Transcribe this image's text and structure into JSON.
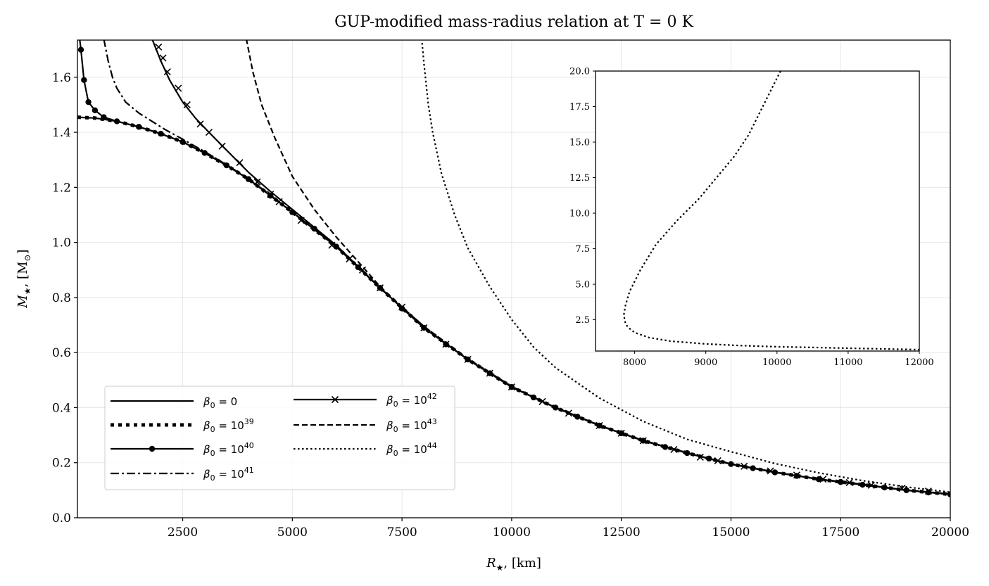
{
  "chart_data": {
    "type": "line",
    "title": "GUP-modified mass-radius relation at T = 0 K",
    "xlabel_main": "R",
    "xlabel_sub": "★",
    "xlabel_unit": ", [km]",
    "ylabel_main": "M",
    "ylabel_sub": "★",
    "ylabel_unit": ", [M",
    "ylabel_sun": "⊙",
    "ylabel_close": "]",
    "xlim": [
      100,
      20000
    ],
    "ylim": [
      0.0,
      1.735
    ],
    "xticks": [
      2500,
      5000,
      7500,
      10000,
      12500,
      15000,
      17500,
      20000
    ],
    "yticks": [
      0.0,
      0.2,
      0.4,
      0.6,
      0.8,
      1.0,
      1.2,
      1.4,
      1.6
    ],
    "xtick_labels": [
      "2500",
      "5000",
      "7500",
      "10000",
      "12500",
      "15000",
      "17500",
      "20000"
    ],
    "ytick_labels": [
      "0.0",
      "0.2",
      "0.4",
      "0.6",
      "0.8",
      "1.0",
      "1.2",
      "1.4",
      "1.6"
    ],
    "grid": true,
    "legend_position": "lower-left",
    "series": [
      {
        "name": "beta0-0",
        "label_exp": "",
        "label_value": "0",
        "style": "solid",
        "marker": "none",
        "x": [
          100,
          500,
          1000,
          1500,
          2000,
          2500,
          3000,
          3500,
          4000,
          4500,
          5000,
          6000,
          7000,
          8000,
          9000,
          10000,
          11000,
          12000,
          13000,
          14000,
          15000,
          16000,
          17000,
          18000,
          19000,
          20000
        ],
        "y": [
          1.455,
          1.452,
          1.44,
          1.42,
          1.395,
          1.365,
          1.325,
          1.28,
          1.23,
          1.17,
          1.11,
          0.985,
          0.835,
          0.69,
          0.575,
          0.475,
          0.4,
          0.335,
          0.28,
          0.235,
          0.195,
          0.165,
          0.14,
          0.12,
          0.1,
          0.085
        ]
      },
      {
        "name": "beta0-1e39",
        "label_exp": "39",
        "label_value": "10",
        "style": "dotted-thick",
        "marker": "none",
        "x": [
          100,
          500,
          1000,
          1500,
          2000,
          2500,
          3000,
          3500,
          4000,
          4500,
          5000,
          6000,
          7000,
          8000,
          9000,
          10000,
          11000,
          12000,
          13000,
          14000,
          15000,
          16000,
          17000,
          18000,
          19000,
          20000
        ],
        "y": [
          1.455,
          1.452,
          1.44,
          1.42,
          1.395,
          1.365,
          1.325,
          1.28,
          1.23,
          1.17,
          1.11,
          0.985,
          0.835,
          0.69,
          0.575,
          0.475,
          0.4,
          0.335,
          0.28,
          0.235,
          0.195,
          0.165,
          0.14,
          0.12,
          0.1,
          0.085
        ]
      },
      {
        "name": "beta0-1e40",
        "label_exp": "40",
        "label_value": "10",
        "style": "solid",
        "marker": "circle",
        "x": [
          150,
          180,
          250,
          350,
          500,
          700,
          1000,
          1500,
          2000,
          2500,
          3000,
          3500,
          4000,
          4500,
          5000,
          6000,
          7000,
          8000,
          9000,
          10000,
          11000,
          12000,
          13000,
          14000,
          15000,
          16000,
          17000,
          18000,
          19000,
          20000
        ],
        "y": [
          1.74,
          1.7,
          1.59,
          1.51,
          1.48,
          1.455,
          1.44,
          1.42,
          1.395,
          1.365,
          1.325,
          1.28,
          1.23,
          1.17,
          1.11,
          0.985,
          0.835,
          0.69,
          0.575,
          0.475,
          0.4,
          0.335,
          0.28,
          0.235,
          0.195,
          0.165,
          0.14,
          0.12,
          0.1,
          0.085
        ],
        "marker_x": [
          180,
          250,
          350,
          500,
          700,
          1000,
          1500,
          2000,
          2500,
          3000,
          3500,
          4000,
          4500,
          5000,
          5500,
          6000,
          6500,
          7000,
          7500,
          8000,
          8500,
          9000,
          9500,
          10000,
          10500,
          11000,
          11500,
          12000,
          12500,
          13000,
          13500,
          14000,
          14500,
          15000,
          15500,
          16000,
          16500,
          17000,
          17500,
          18000,
          18500,
          19000,
          19500,
          20000
        ],
        "marker_y": [
          1.7,
          1.59,
          1.51,
          1.48,
          1.455,
          1.44,
          1.42,
          1.395,
          1.365,
          1.325,
          1.28,
          1.23,
          1.17,
          1.11,
          1.05,
          0.985,
          0.91,
          0.835,
          0.76,
          0.69,
          0.63,
          0.575,
          0.525,
          0.475,
          0.437,
          0.4,
          0.367,
          0.335,
          0.307,
          0.28,
          0.257,
          0.235,
          0.215,
          0.195,
          0.18,
          0.165,
          0.152,
          0.14,
          0.13,
          0.12,
          0.11,
          0.1,
          0.092,
          0.085
        ]
      },
      {
        "name": "beta0-1e41",
        "label_exp": "41",
        "label_value": "10",
        "style": "dashdot",
        "marker": "none",
        "x": [
          700,
          800,
          900,
          1000,
          1200,
          1500,
          1800,
          2100,
          2500,
          3000,
          3500,
          4000,
          4500,
          5000,
          6000,
          7000,
          8000,
          9000,
          10000,
          11000,
          12000,
          13000,
          14000,
          15000,
          16000,
          17000,
          18000,
          19000,
          20000
        ],
        "y": [
          1.74,
          1.66,
          1.6,
          1.56,
          1.51,
          1.47,
          1.44,
          1.41,
          1.375,
          1.33,
          1.282,
          1.232,
          1.172,
          1.11,
          0.985,
          0.835,
          0.69,
          0.575,
          0.475,
          0.4,
          0.335,
          0.28,
          0.235,
          0.195,
          0.165,
          0.14,
          0.12,
          0.1,
          0.085
        ]
      },
      {
        "name": "beta0-1e42",
        "label_exp": "42",
        "label_value": "10",
        "style": "solid",
        "marker": "x",
        "x": [
          1800,
          2000,
          2200,
          2500,
          2800,
          3100,
          3500,
          4000,
          4500,
          5000,
          6000,
          7000,
          8000,
          9000,
          10000,
          11000,
          12000,
          13000,
          14000,
          15000,
          16000,
          17000,
          18000,
          19000,
          20000
        ],
        "y": [
          1.74,
          1.66,
          1.59,
          1.51,
          1.45,
          1.4,
          1.335,
          1.255,
          1.185,
          1.12,
          0.99,
          0.835,
          0.69,
          0.575,
          0.475,
          0.4,
          0.335,
          0.28,
          0.235,
          0.195,
          0.165,
          0.14,
          0.12,
          0.1,
          0.085
        ],
        "marker_x": [
          1950,
          2050,
          2150,
          2400,
          2600,
          2900,
          3100,
          3400,
          3800,
          4200,
          4500,
          4700,
          5200,
          5900,
          6300,
          6600,
          7000,
          7500,
          8000,
          8500,
          9000,
          9500,
          10000,
          10700,
          11300,
          12000,
          12500,
          13000,
          13700,
          14300,
          14700,
          15300,
          15900,
          16500,
          17100,
          17700,
          18200,
          18900,
          19500
        ],
        "marker_y": [
          1.71,
          1.67,
          1.62,
          1.56,
          1.5,
          1.43,
          1.4,
          1.35,
          1.29,
          1.22,
          1.175,
          1.148,
          1.08,
          0.99,
          0.94,
          0.9,
          0.835,
          0.765,
          0.69,
          0.63,
          0.575,
          0.525,
          0.475,
          0.422,
          0.38,
          0.335,
          0.307,
          0.28,
          0.248,
          0.22,
          0.207,
          0.187,
          0.17,
          0.155,
          0.14,
          0.128,
          0.118,
          0.107,
          0.097
        ]
      },
      {
        "name": "beta0-1e43",
        "label_exp": "43",
        "label_value": "10",
        "style": "dashed",
        "marker": "none",
        "x": [
          3950,
          4100,
          4300,
          4600,
          5000,
          5500,
          6000,
          6500,
          7000,
          7500,
          8000,
          9000,
          10000,
          11000,
          12000,
          13000,
          14000,
          15000,
          16000,
          17000,
          18000,
          19000,
          20000
        ],
        "y": [
          1.74,
          1.62,
          1.5,
          1.38,
          1.24,
          1.12,
          1.02,
          0.93,
          0.84,
          0.765,
          0.695,
          0.578,
          0.477,
          0.401,
          0.336,
          0.281,
          0.236,
          0.196,
          0.166,
          0.141,
          0.121,
          0.101,
          0.086
        ]
      },
      {
        "name": "beta0-1e44",
        "label_exp": "44",
        "label_value": "10",
        "style": "dotted",
        "marker": "none",
        "x": [
          7950,
          8000,
          8100,
          8200,
          8400,
          8700,
          9000,
          9500,
          10000,
          10500,
          11000,
          12000,
          13000,
          14000,
          15000,
          16000,
          17000,
          18000,
          19000,
          20000
        ],
        "y": [
          1.74,
          1.65,
          1.5,
          1.4,
          1.25,
          1.1,
          0.98,
          0.84,
          0.72,
          0.62,
          0.545,
          0.435,
          0.35,
          0.285,
          0.24,
          0.197,
          0.163,
          0.135,
          0.112,
          0.093
        ]
      }
    ],
    "inset": {
      "xlim": [
        7450,
        12000
      ],
      "ylim": [
        0.3,
        20.0
      ],
      "xticks": [
        8000,
        9000,
        10000,
        11000,
        12000
      ],
      "yticks": [
        2.5,
        5.0,
        7.5,
        10.0,
        12.5,
        15.0,
        17.5,
        20.0
      ],
      "xtick_labels": [
        "8000",
        "9000",
        "10000",
        "11000",
        "12000"
      ],
      "ytick_labels": [
        "2.5",
        "5.0",
        "7.5",
        "10.0",
        "12.5",
        "15.0",
        "17.5",
        "20.0"
      ],
      "series": [
        {
          "name": "inset-beta0-1e44",
          "style": "dotted",
          "x": [
            10050,
            9950,
            9800,
            9600,
            9400,
            9150,
            8900,
            8600,
            8300,
            8080,
            7960,
            7930,
            7900,
            7870,
            7850,
            7860,
            7900,
            8000,
            8200,
            8500,
            9000,
            9500,
            10000,
            10500,
            11000,
            11500,
            12000
          ],
          "y": [
            20.0,
            19.0,
            17.5,
            15.5,
            14.0,
            12.5,
            11.0,
            9.5,
            7.8,
            6.0,
            4.8,
            4.5,
            4.0,
            3.5,
            2.9,
            2.4,
            2.0,
            1.6,
            1.25,
            1.0,
            0.8,
            0.68,
            0.6,
            0.55,
            0.5,
            0.45,
            0.4
          ]
        }
      ]
    }
  }
}
